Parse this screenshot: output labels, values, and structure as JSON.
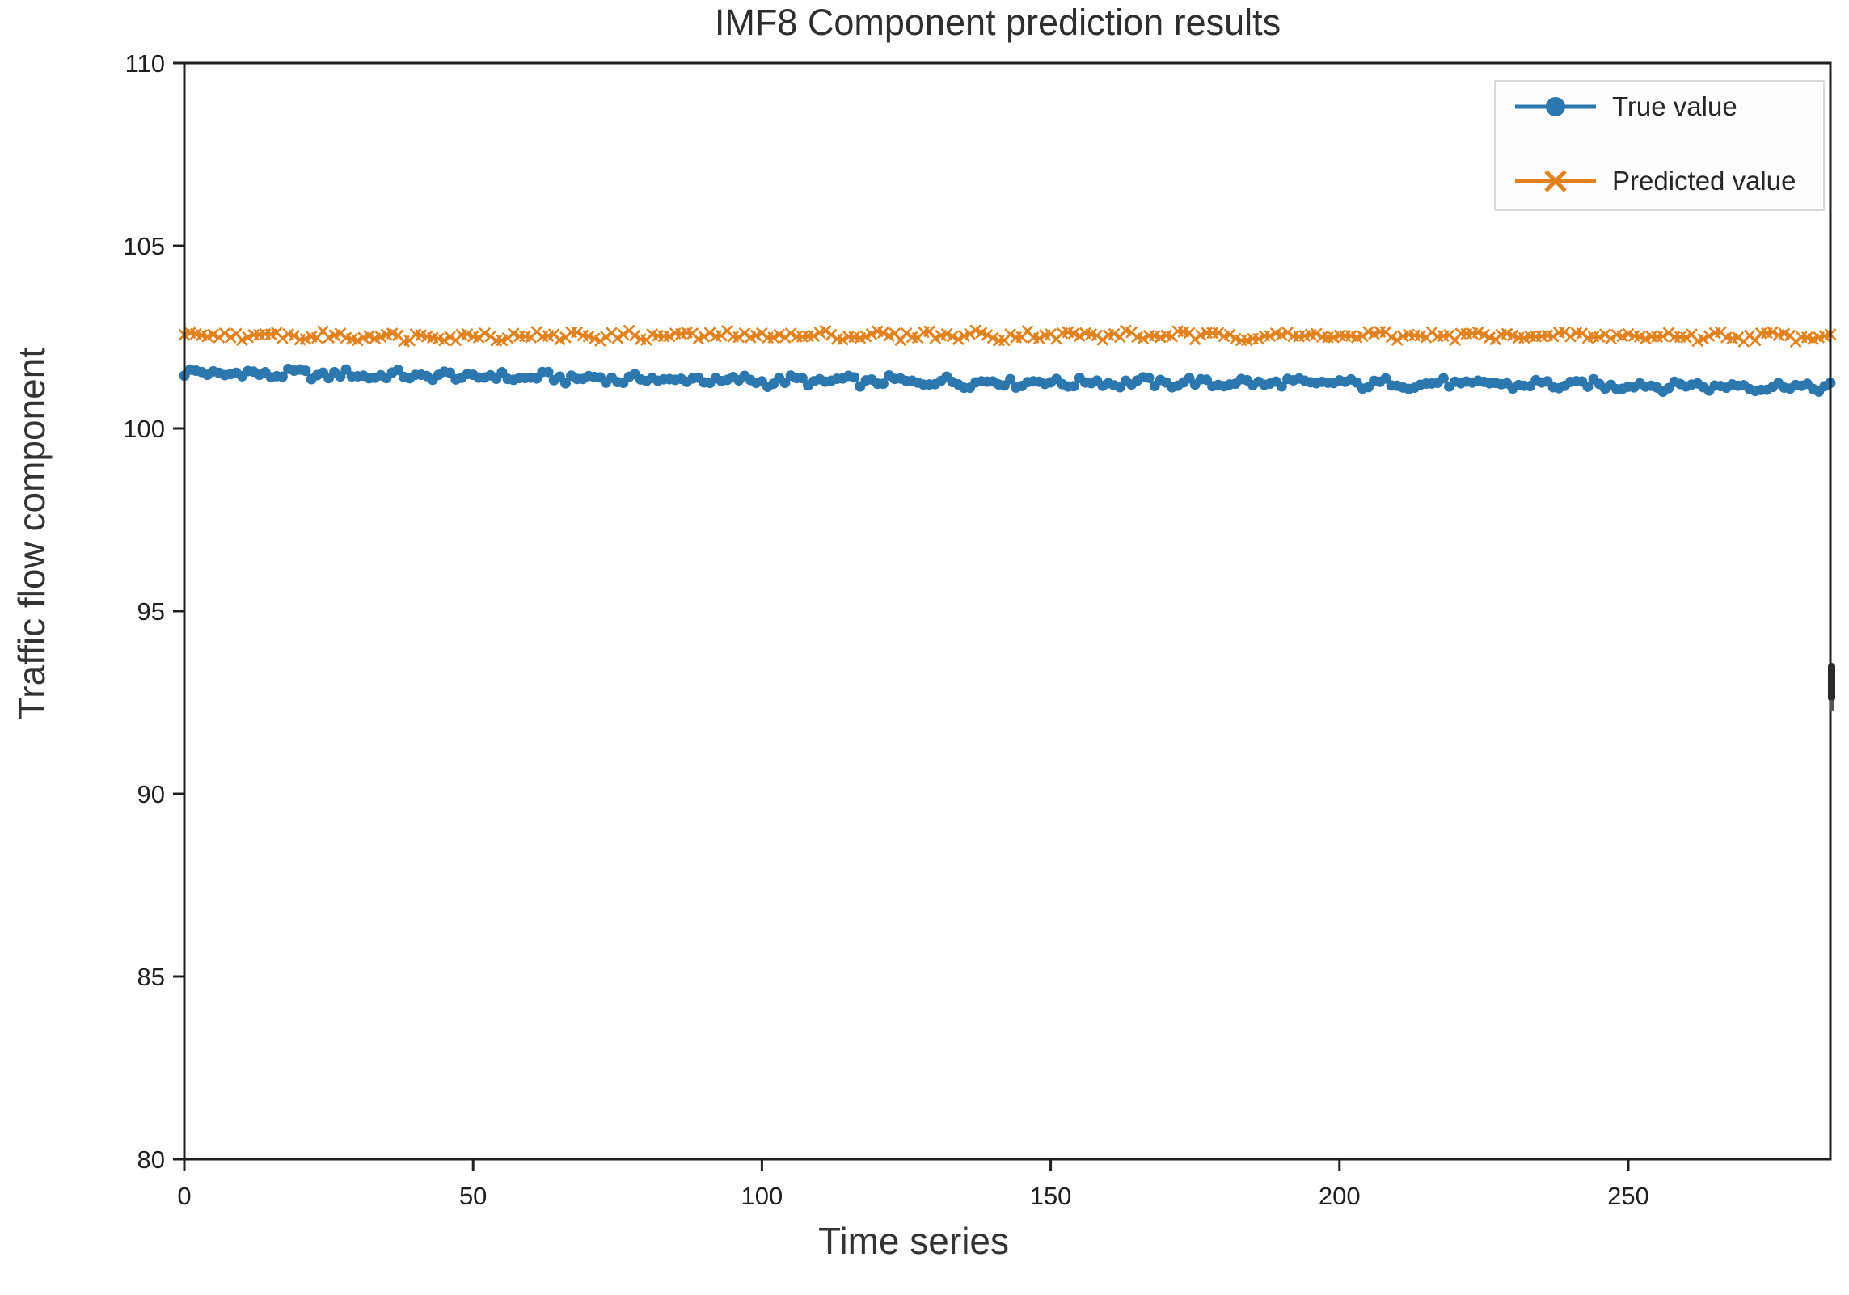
{
  "chart_data": {
    "type": "line",
    "title": "IMF8 Component prediction results",
    "xlabel": "Time series",
    "ylabel": "Traffic flow component",
    "xlim": [
      0,
      285
    ],
    "ylim": [
      80,
      110
    ],
    "xticks": [
      0,
      50,
      100,
      150,
      200,
      250
    ],
    "yticks": [
      80,
      85,
      90,
      95,
      100,
      105,
      110
    ],
    "grid": false,
    "legend_position": "upper right",
    "background_color": "#ffffff",
    "axis_color": "#1f1f1f",
    "series": [
      {
        "name": "True value",
        "color": "#2b77ae",
        "marker": "circle",
        "n_points": 286,
        "trend": [
          [
            0,
            101.52
          ],
          [
            50,
            101.42
          ],
          [
            100,
            101.3
          ],
          [
            160,
            101.26
          ],
          [
            220,
            101.22
          ],
          [
            285,
            101.14
          ]
        ],
        "noise_amplitude": 0.17
      },
      {
        "name": "Predicted value",
        "color": "#e1821e",
        "marker": "x",
        "n_points": 286,
        "trend": [
          [
            0,
            102.52
          ],
          [
            140,
            102.55
          ],
          [
            285,
            102.52
          ]
        ],
        "noise_amplitude": 0.15
      }
    ]
  }
}
